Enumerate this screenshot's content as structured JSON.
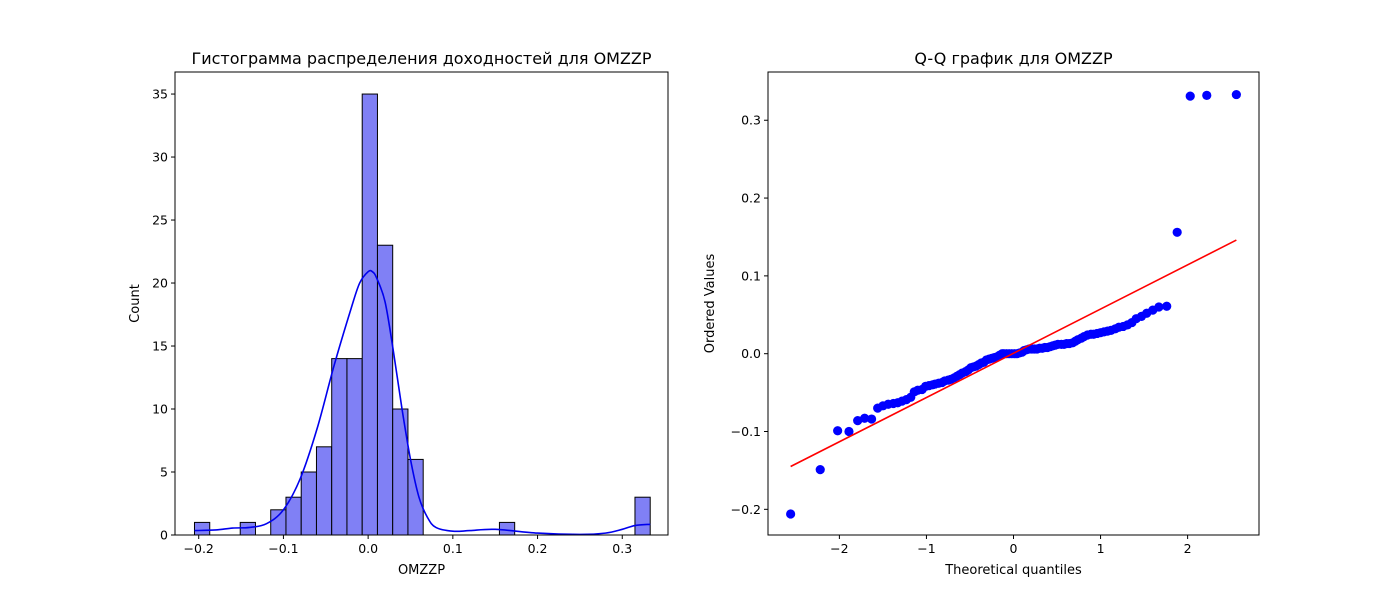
{
  "chart_data": [
    {
      "type": "bar",
      "title": "Гистограмма распределения доходностей для OMZZP",
      "xlabel": "OMZZP",
      "ylabel": "Count",
      "xlim": [
        -0.228,
        0.354
      ],
      "ylim": [
        0,
        36.75
      ],
      "xticks": [
        -0.2,
        -0.1,
        0.0,
        0.1,
        0.2,
        0.3
      ],
      "xtick_labels": [
        "−0.2",
        "−0.1",
        "0.0",
        "0.1",
        "0.2",
        "0.3"
      ],
      "yticks": [
        0,
        5,
        10,
        15,
        20,
        25,
        30,
        35
      ],
      "ytick_labels": [
        "0",
        "5",
        "10",
        "15",
        "20",
        "25",
        "30",
        "35"
      ],
      "bins": [
        {
          "x0": -0.205,
          "x1": -0.187,
          "count": 1
        },
        {
          "x0": -0.151,
          "x1": -0.133,
          "count": 1
        },
        {
          "x0": -0.115,
          "x1": -0.097,
          "count": 2
        },
        {
          "x0": -0.097,
          "x1": -0.079,
          "count": 3
        },
        {
          "x0": -0.079,
          "x1": -0.061,
          "count": 5
        },
        {
          "x0": -0.061,
          "x1": -0.043,
          "count": 7
        },
        {
          "x0": -0.043,
          "x1": -0.025,
          "count": 14
        },
        {
          "x0": -0.025,
          "x1": -0.007,
          "count": 14
        },
        {
          "x0": -0.007,
          "x1": 0.011,
          "count": 35
        },
        {
          "x0": 0.011,
          "x1": 0.029,
          "count": 23
        },
        {
          "x0": 0.029,
          "x1": 0.047,
          "count": 10
        },
        {
          "x0": 0.047,
          "x1": 0.065,
          "count": 6
        },
        {
          "x0": 0.155,
          "x1": 0.173,
          "count": 1
        },
        {
          "x0": 0.315,
          "x1": 0.333,
          "count": 3
        }
      ],
      "kde": {
        "x": [
          -0.205,
          -0.18,
          -0.16,
          -0.14,
          -0.12,
          -0.1,
          -0.08,
          -0.06,
          -0.04,
          -0.02,
          -0.01,
          0.0,
          0.005,
          0.01,
          0.02,
          0.03,
          0.04,
          0.05,
          0.06,
          0.07,
          0.08,
          0.1,
          0.12,
          0.15,
          0.2,
          0.25,
          0.28,
          0.3,
          0.315,
          0.333
        ],
        "y": [
          0.35,
          0.4,
          0.55,
          0.6,
          0.9,
          2.0,
          4.5,
          8.5,
          13.5,
          18.0,
          20.0,
          20.9,
          20.9,
          20.4,
          18.5,
          14.5,
          10.0,
          6.0,
          3.0,
          1.4,
          0.6,
          0.3,
          0.35,
          0.45,
          0.15,
          0.05,
          0.15,
          0.45,
          0.75,
          0.85
        ]
      },
      "colors": {
        "bar_fill": "#8080f5",
        "bar_edge": "#000000",
        "kde": "#0000ee"
      }
    },
    {
      "type": "scatter",
      "title": "Q-Q график для OMZZP",
      "xlabel": "Theoretical quantiles",
      "ylabel": "Ordered Values",
      "xlim": [
        -2.82,
        2.82
      ],
      "ylim": [
        -0.233,
        0.362
      ],
      "xticks": [
        -2,
        -1,
        0,
        1,
        2
      ],
      "xtick_labels": [
        "−2",
        "−1",
        "0",
        "1",
        "2"
      ],
      "yticks": [
        -0.2,
        -0.1,
        0.0,
        0.1,
        0.2,
        0.3
      ],
      "ytick_labels": [
        "−0.2",
        "−0.1",
        "0.0",
        "0.1",
        "0.2",
        "0.3"
      ],
      "points": [
        [
          -2.56,
          -0.206
        ],
        [
          -2.22,
          -0.149
        ],
        [
          -2.02,
          -0.099
        ],
        [
          -1.89,
          -0.1
        ],
        [
          -1.79,
          -0.086
        ],
        [
          -1.71,
          -0.083
        ],
        [
          -1.63,
          -0.084
        ],
        [
          -1.56,
          -0.07
        ],
        [
          -1.5,
          -0.067
        ],
        [
          -1.44,
          -0.065
        ],
        [
          -1.38,
          -0.064
        ],
        [
          -1.33,
          -0.063
        ],
        [
          -1.28,
          -0.061
        ],
        [
          -1.23,
          -0.059
        ],
        [
          -1.18,
          -0.056
        ],
        [
          -1.14,
          -0.049
        ],
        [
          -1.1,
          -0.047
        ],
        [
          -1.05,
          -0.046
        ],
        [
          -1.01,
          -0.042
        ],
        [
          -0.97,
          -0.041
        ],
        [
          -0.93,
          -0.04
        ],
        [
          -0.9,
          -0.039
        ],
        [
          -0.86,
          -0.038
        ],
        [
          -0.82,
          -0.037
        ],
        [
          -0.79,
          -0.035
        ],
        [
          -0.75,
          -0.034
        ],
        [
          -0.72,
          -0.033
        ],
        [
          -0.68,
          -0.031
        ],
        [
          -0.65,
          -0.029
        ],
        [
          -0.62,
          -0.027
        ],
        [
          -0.59,
          -0.025
        ],
        [
          -0.55,
          -0.023
        ],
        [
          -0.52,
          -0.021
        ],
        [
          -0.49,
          -0.018
        ],
        [
          -0.46,
          -0.017
        ],
        [
          -0.43,
          -0.016
        ],
        [
          -0.4,
          -0.014
        ],
        [
          -0.37,
          -0.012
        ],
        [
          -0.34,
          -0.011
        ],
        [
          -0.31,
          -0.008
        ],
        [
          -0.28,
          -0.007
        ],
        [
          -0.25,
          -0.006
        ],
        [
          -0.22,
          -0.005
        ],
        [
          -0.19,
          -0.004
        ],
        [
          -0.16,
          -0.002
        ],
        [
          -0.13,
          0.0
        ],
        [
          -0.11,
          0.0
        ],
        [
          -0.08,
          0.0
        ],
        [
          -0.05,
          0.0
        ],
        [
          -0.02,
          0.0
        ],
        [
          0.01,
          0.0
        ],
        [
          0.04,
          0.0
        ],
        [
          0.07,
          0.001
        ],
        [
          0.1,
          0.002
        ],
        [
          0.12,
          0.004
        ],
        [
          0.15,
          0.005
        ],
        [
          0.18,
          0.006
        ],
        [
          0.21,
          0.006
        ],
        [
          0.24,
          0.006
        ],
        [
          0.27,
          0.006
        ],
        [
          0.3,
          0.007
        ],
        [
          0.33,
          0.007
        ],
        [
          0.36,
          0.008
        ],
        [
          0.39,
          0.008
        ],
        [
          0.42,
          0.009
        ],
        [
          0.45,
          0.01
        ],
        [
          0.48,
          0.011
        ],
        [
          0.51,
          0.012
        ],
        [
          0.55,
          0.012
        ],
        [
          0.58,
          0.012
        ],
        [
          0.61,
          0.013
        ],
        [
          0.64,
          0.013
        ],
        [
          0.68,
          0.014
        ],
        [
          0.71,
          0.016
        ],
        [
          0.74,
          0.018
        ],
        [
          0.78,
          0.02
        ],
        [
          0.81,
          0.022
        ],
        [
          0.85,
          0.024
        ],
        [
          0.89,
          0.025
        ],
        [
          0.92,
          0.025
        ],
        [
          0.96,
          0.026
        ],
        [
          1.0,
          0.027
        ],
        [
          1.04,
          0.028
        ],
        [
          1.08,
          0.029
        ],
        [
          1.12,
          0.03
        ],
        [
          1.17,
          0.032
        ],
        [
          1.21,
          0.034
        ],
        [
          1.26,
          0.035
        ],
        [
          1.31,
          0.037
        ],
        [
          1.36,
          0.04
        ],
        [
          1.41,
          0.045
        ],
        [
          1.47,
          0.048
        ],
        [
          1.53,
          0.052
        ],
        [
          1.6,
          0.056
        ],
        [
          1.67,
          0.06
        ],
        [
          1.76,
          0.061
        ],
        [
          1.88,
          0.156
        ],
        [
          2.03,
          0.331
        ],
        [
          2.22,
          0.332
        ],
        [
          2.56,
          0.333
        ]
      ],
      "fit_line": {
        "x": [
          -2.56,
          2.56
        ],
        "y": [
          -0.145,
          0.146
        ]
      },
      "colors": {
        "points": "#0000ff",
        "line": "#ff0000"
      }
    }
  ]
}
